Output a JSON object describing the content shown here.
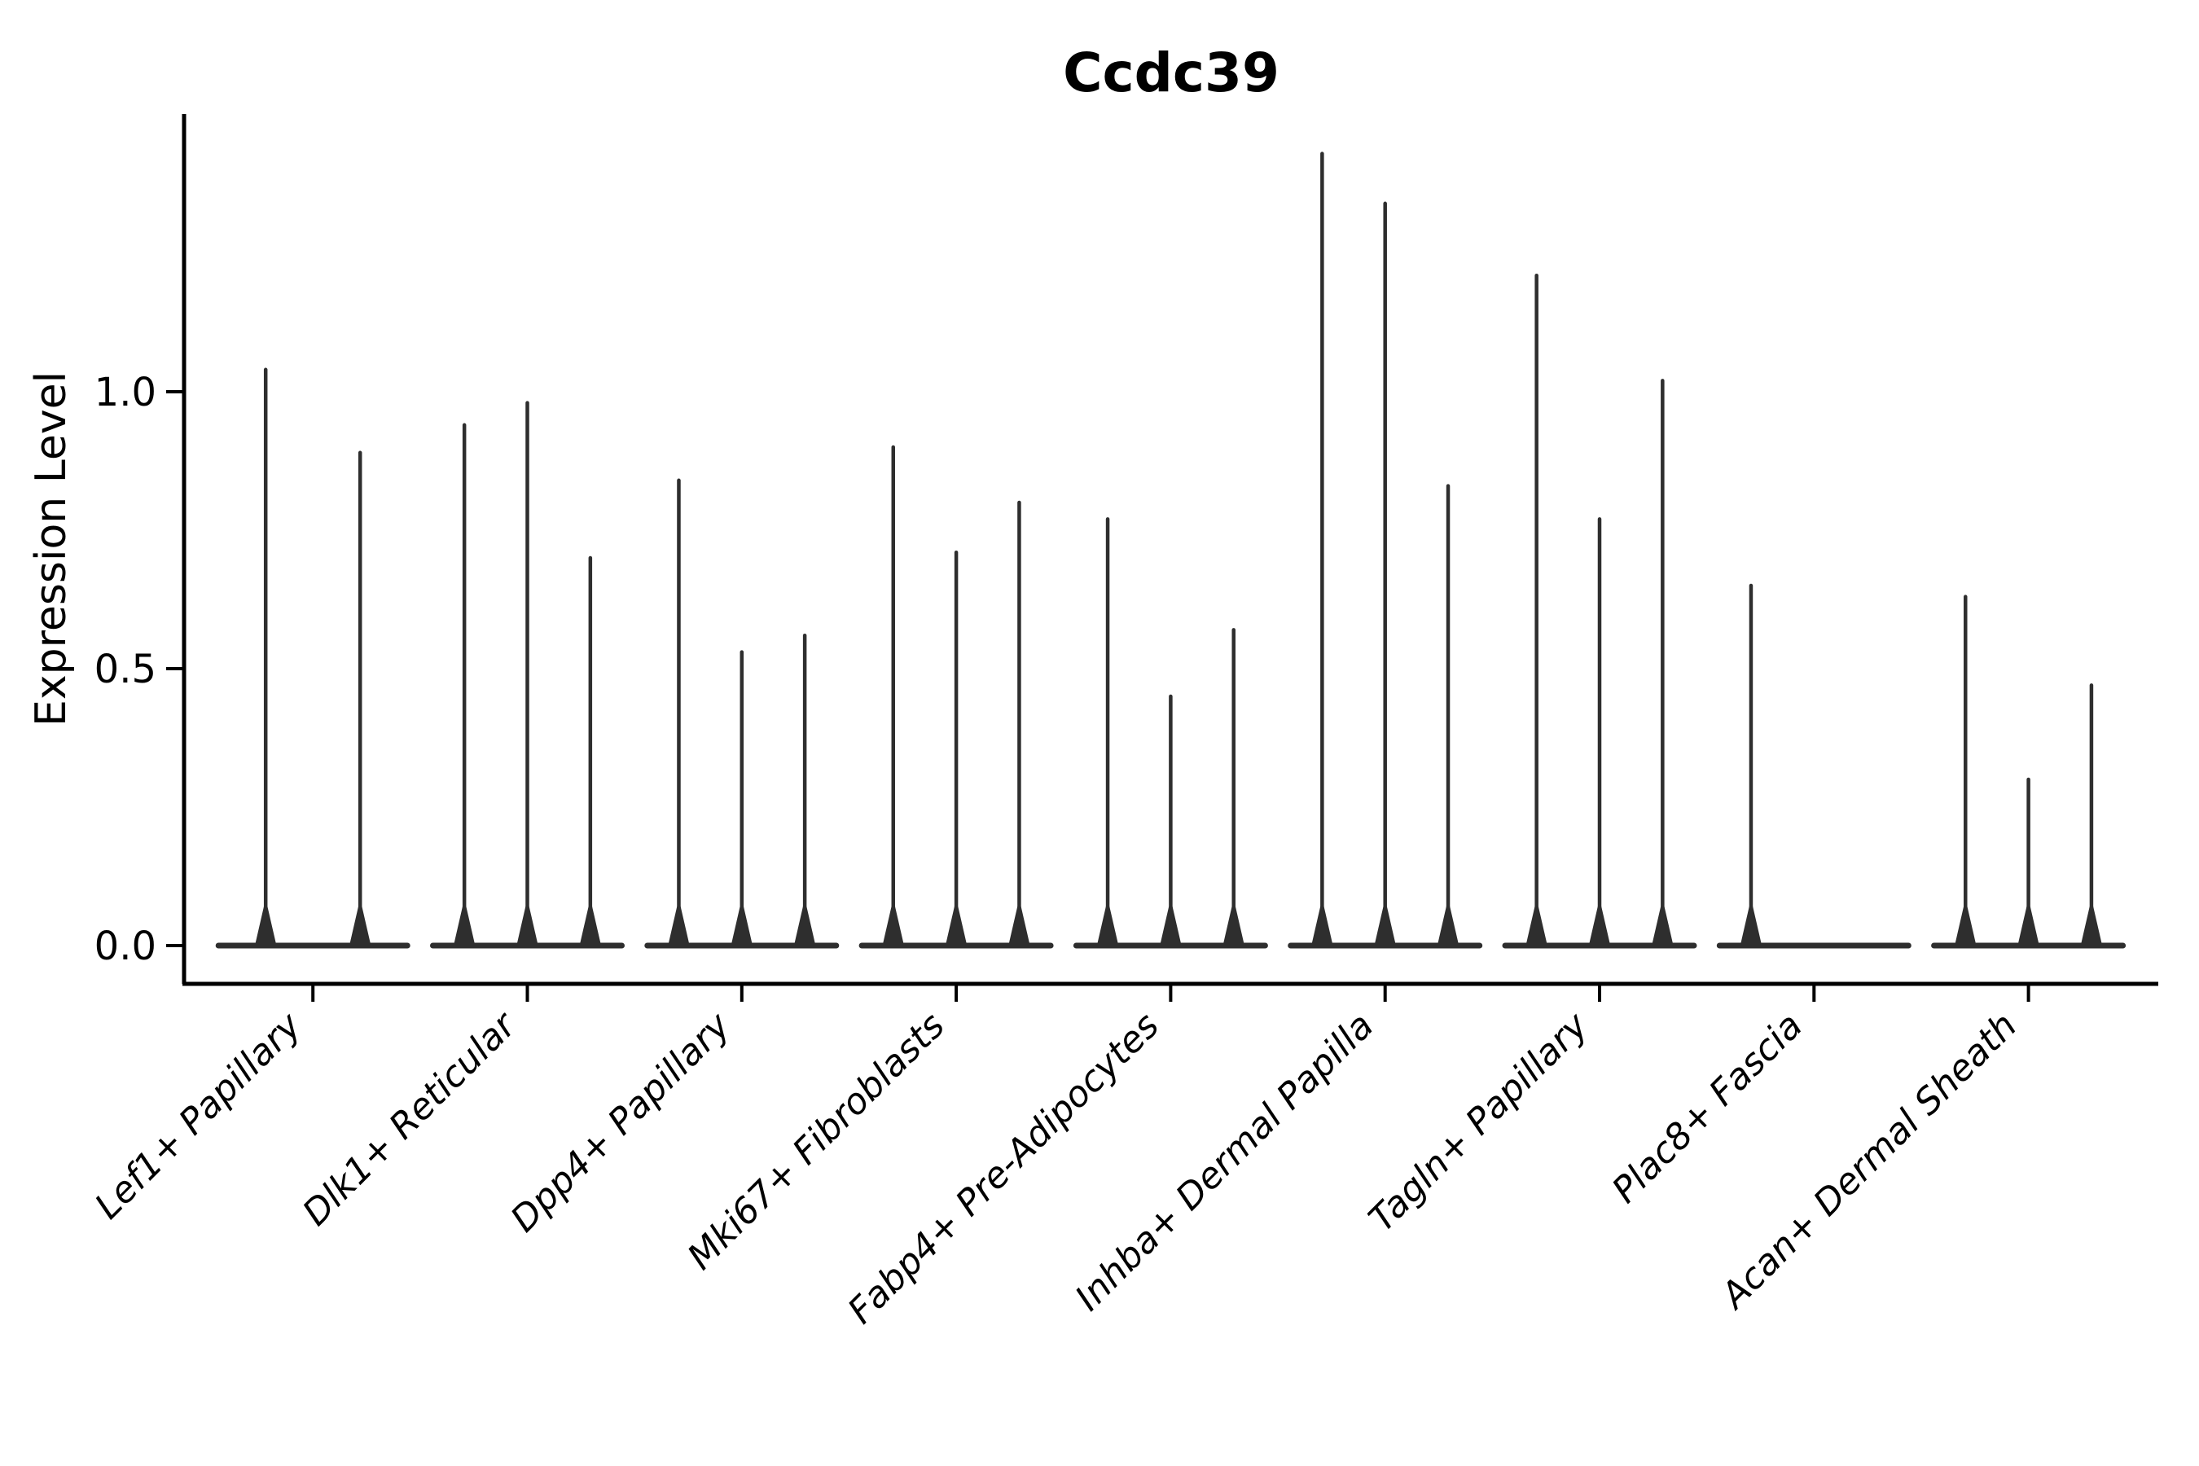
{
  "chart_data": {
    "type": "violin",
    "title": "Ccdc39",
    "xlabel": "",
    "ylabel": "Expression Level",
    "grid": false,
    "legend": null,
    "ylim": [
      -0.07,
      1.5
    ],
    "yticks": [
      {
        "label": "0.0",
        "value": 0.0
      },
      {
        "label": "0.5",
        "value": 0.5
      },
      {
        "label": "1.0",
        "value": 1.0
      }
    ],
    "style": {
      "violin_color": "#2e2e2e",
      "axis_color": "#000000",
      "background": "#ffffff",
      "violin_shape": "thin spike with flat base at zero",
      "x_label_rotation_deg": 45
    },
    "groups": [
      {
        "label": "Lef1+ Papillary",
        "max_expression": [
          1.04,
          0.89
        ]
      },
      {
        "label": "Dlk1+ Reticular",
        "max_expression": [
          0.94,
          0.98,
          0.7
        ]
      },
      {
        "label": "Dpp4+ Papillary",
        "max_expression": [
          0.84,
          0.53,
          0.56
        ]
      },
      {
        "label": "Mki67+ Fibroblasts",
        "max_expression": [
          0.9,
          0.71,
          0.8
        ]
      },
      {
        "label": "Fabp4+ Pre-Adipocytes",
        "max_expression": [
          0.77,
          0.45,
          0.57
        ]
      },
      {
        "label": "Inhba+ Dermal Papilla",
        "max_expression": [
          1.43,
          1.34,
          0.83
        ]
      },
      {
        "label": "Tagln+ Papillary",
        "max_expression": [
          1.21,
          0.77,
          1.02
        ]
      },
      {
        "label": "Plac8+ Fascia",
        "max_expression": [
          0.65,
          0.0,
          0.0
        ]
      },
      {
        "label": "Acan+ Dermal Sheath",
        "max_expression": [
          0.63,
          0.3,
          0.47
        ]
      }
    ]
  }
}
